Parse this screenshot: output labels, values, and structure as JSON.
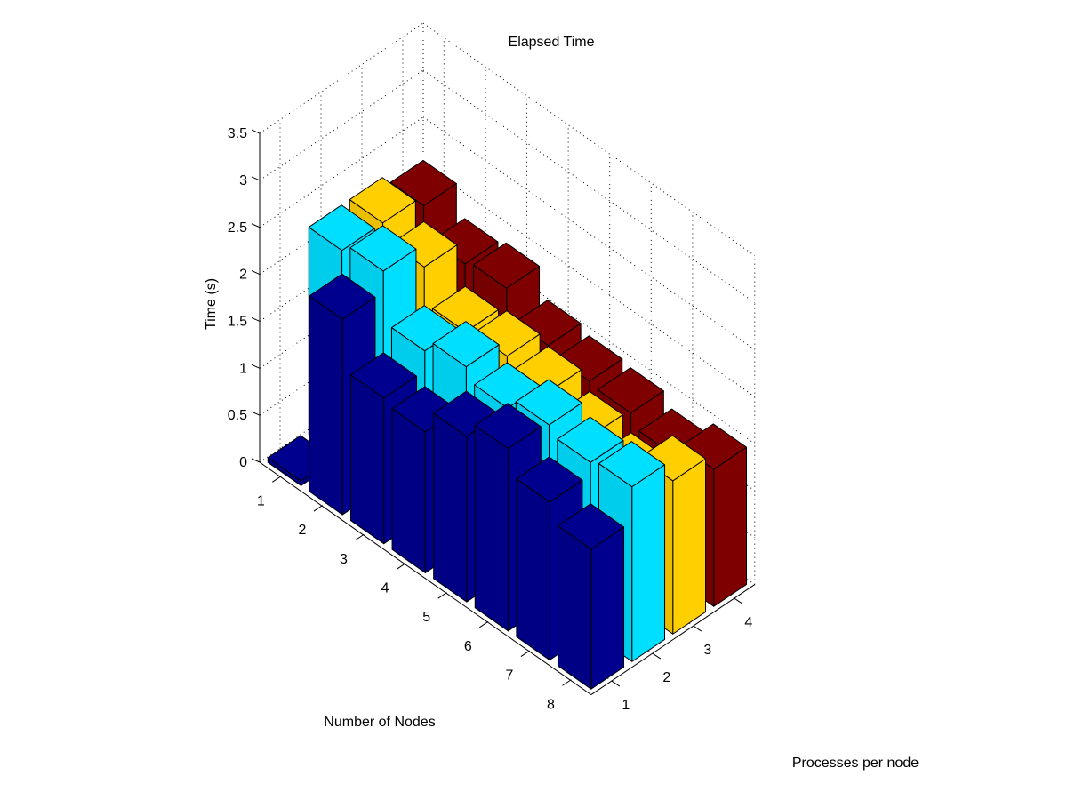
{
  "chart_data": {
    "type": "bar3d",
    "title": "Elapsed Time",
    "zlabel": "Time (s)",
    "xlabel": "Number of Nodes",
    "ylabel": "Processes per node",
    "zlim": [
      0,
      3.5
    ],
    "z_ticks": [
      "0",
      "0.5",
      "1",
      "1.5",
      "2",
      "2.5",
      "3",
      "3.5"
    ],
    "nodes": [
      "1",
      "2",
      "3",
      "4",
      "5",
      "6",
      "7",
      "8"
    ],
    "processes": [
      "1",
      "2",
      "3",
      "4"
    ],
    "grid": true,
    "colors": {
      "1": "#00008f",
      "2": "#00dfff",
      "3": "#ffcf00",
      "4": "#7f0000"
    },
    "values": {
      "1": [
        0.05,
        2.08,
        1.55,
        1.5,
        1.76,
        1.94,
        1.68,
        1.49
      ],
      "2": [
        2.21,
        2.3,
        1.76,
        1.9,
        1.77,
        1.9,
        1.81,
        1.86
      ],
      "3": [
        2.21,
        2.05,
        1.67,
        1.72,
        1.65,
        1.48,
        1.35,
        1.63
      ],
      "4": [
        2.1,
        1.79,
        1.84,
        1.54,
        1.47,
        1.44,
        1.31,
        1.46
      ]
    }
  }
}
